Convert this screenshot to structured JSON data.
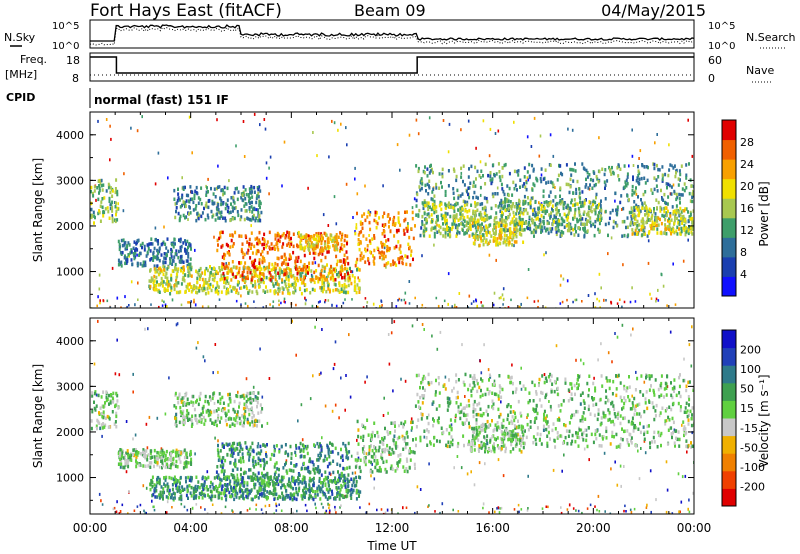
{
  "header": {
    "radar": "Fort Hays East (fitACF)",
    "beam": "Beam 09",
    "date": "04/May/2015"
  },
  "noise_panel": {
    "left_label": "N.Sky",
    "right_label": "N.Search",
    "tick_top": "10^5",
    "tick_bottom": "10^0"
  },
  "freq_panel": {
    "left_label_1": "Freq.",
    "left_label_2": "[MHz]",
    "right_label": "Nave",
    "left_ticks": [
      "18",
      "8"
    ],
    "right_ticks": [
      "60",
      "0"
    ],
    "cpid_label": "CPID",
    "cpid_text": "normal (fast) 151 IF"
  },
  "colors": {
    "power_scale": [
      "#1010ff",
      "#1a3fb0",
      "#2e6e9a",
      "#3e9e6a",
      "#a8c850",
      "#f0e000",
      "#f8a000",
      "#f06000",
      "#e00000"
    ],
    "velocity_scale": [
      "#1010c8",
      "#2040b8",
      "#2e7a8a",
      "#3ea050",
      "#60d040",
      "#c8c8c8",
      "#f0b000",
      "#f08000",
      "#f04000",
      "#e00000"
    ]
  },
  "chart_data": [
    {
      "type": "heatmap",
      "panel": "power",
      "ylabel": "Slant Range [km]",
      "ylim": [
        200,
        4500
      ],
      "yticks": [
        "1000",
        "2000",
        "3000",
        "4000"
      ],
      "xlim": [
        "00:00",
        "24:00"
      ],
      "colorbar_label": "Power [dB]",
      "colorbar_ticks": [
        "4",
        "8",
        "12",
        "16",
        "20",
        "24",
        "28"
      ],
      "blobs": [
        {
          "t0": 0.0,
          "t1": 1.1,
          "r0": 2100,
          "r1": 3050,
          "level": 0.45
        },
        {
          "t0": 1.1,
          "t1": 4.0,
          "r0": 1150,
          "r1": 1750,
          "level": 0.25
        },
        {
          "t0": 3.3,
          "t1": 6.8,
          "r0": 2150,
          "r1": 2900,
          "level": 0.3
        },
        {
          "t0": 2.3,
          "t1": 10.7,
          "r0": 550,
          "r1": 1150,
          "level": 0.55
        },
        {
          "t0": 5.0,
          "t1": 10.3,
          "r0": 850,
          "r1": 1900,
          "level": 0.85
        },
        {
          "t0": 8.3,
          "t1": 9.8,
          "r0": 1500,
          "r1": 1850,
          "level": 0.65
        },
        {
          "t0": 10.5,
          "t1": 12.9,
          "r0": 1150,
          "r1": 2350,
          "level": 0.8
        },
        {
          "t0": 12.9,
          "t1": 24.0,
          "r0": 1800,
          "r1": 3400,
          "level": 0.35
        },
        {
          "t0": 13.2,
          "t1": 15.7,
          "r0": 1800,
          "r1": 2550,
          "level": 0.5
        },
        {
          "t0": 15.0,
          "t1": 17.2,
          "r0": 1600,
          "r1": 2200,
          "level": 0.6
        },
        {
          "t0": 16.3,
          "t1": 20.3,
          "r0": 1900,
          "r1": 2600,
          "level": 0.45
        },
        {
          "t0": 21.4,
          "t1": 24.0,
          "r0": 1850,
          "r1": 2450,
          "level": 0.55
        }
      ]
    },
    {
      "type": "heatmap",
      "panel": "velocity",
      "ylabel": "Slant Range [km]",
      "ylim": [
        200,
        4500
      ],
      "yticks": [
        "1000",
        "2000",
        "3000",
        "4000"
      ],
      "xlabel": "Time UT",
      "xticks": [
        "00:00",
        "04:00",
        "08:00",
        "12:00",
        "16:00",
        "20:00",
        "00:00"
      ],
      "xlim": [
        "00:00",
        "24:00"
      ],
      "colorbar_label": "Velocity [m s⁻¹]",
      "colorbar_ticks": [
        "200",
        "100",
        "50",
        "15",
        "-15",
        "-50",
        "-100",
        "-200"
      ],
      "blobs": [
        {
          "t0": 0.0,
          "t1": 1.1,
          "r0": 2100,
          "r1": 2950,
          "level": 0.45
        },
        {
          "t0": 1.1,
          "t1": 4.0,
          "r0": 1250,
          "r1": 1650,
          "level": 0.45
        },
        {
          "t0": 3.3,
          "t1": 6.8,
          "r0": 2150,
          "r1": 2900,
          "level": 0.45
        },
        {
          "t0": 2.3,
          "t1": 10.7,
          "r0": 550,
          "r1": 1050,
          "level": 0.3
        },
        {
          "t0": 5.0,
          "t1": 10.3,
          "r0": 900,
          "r1": 1800,
          "level": 0.3
        },
        {
          "t0": 10.5,
          "t1": 12.9,
          "r0": 1150,
          "r1": 2300,
          "level": 0.45
        },
        {
          "t0": 12.9,
          "t1": 24.0,
          "r0": 1700,
          "r1": 3300,
          "level": 0.45
        },
        {
          "t0": 15.0,
          "t1": 17.2,
          "r0": 1600,
          "r1": 2200,
          "level": 0.45
        }
      ]
    }
  ]
}
